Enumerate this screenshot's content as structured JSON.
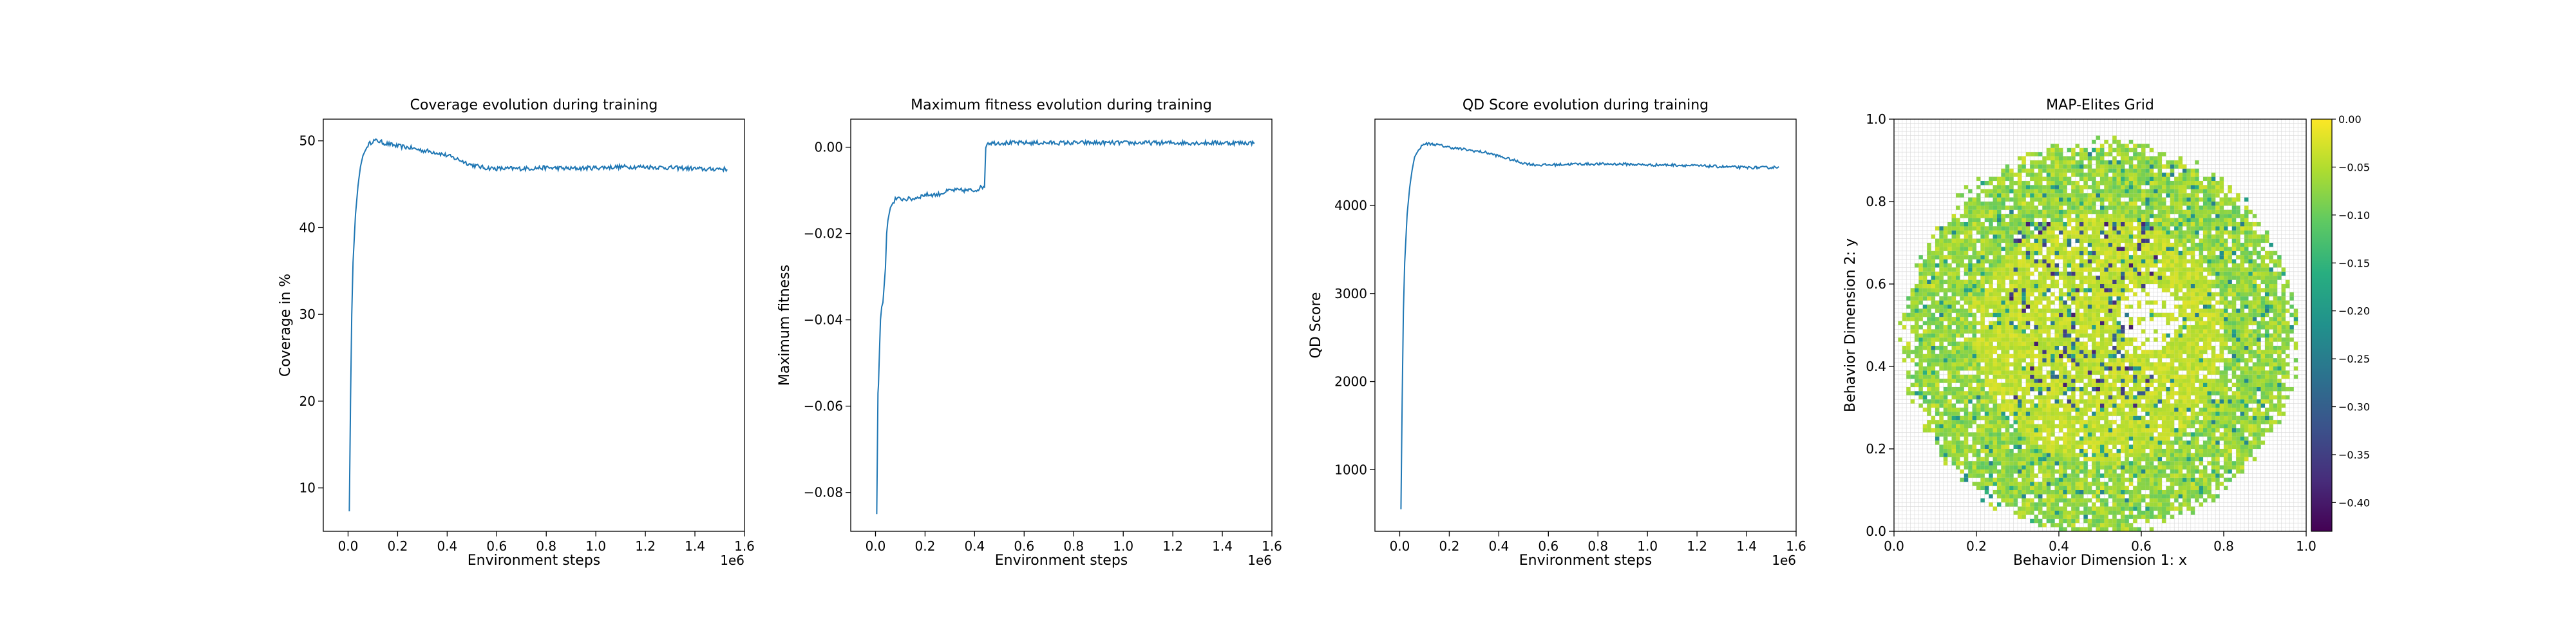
{
  "figure": {
    "scale_label": "1e6",
    "colors": {
      "line": "#1f77b4",
      "axes": "#000000",
      "grid": "#d9d9d9"
    }
  },
  "chart_data": [
    {
      "type": "line",
      "title": "Coverage evolution during training",
      "xlabel": "Environment steps",
      "ylabel": "Coverage in %",
      "x_offset_label": "1e6",
      "xlim": [
        -0.1,
        1.6
      ],
      "ylim": [
        5,
        52.5
      ],
      "xticks": [
        0.0,
        0.2,
        0.4,
        0.6,
        0.8,
        1.0,
        1.2,
        1.4,
        1.6
      ],
      "xtick_labels": [
        "0.0",
        "0.2",
        "0.4",
        "0.6",
        "0.8",
        "1.0",
        "1.2",
        "1.4",
        "1.6"
      ],
      "yticks": [
        10,
        20,
        30,
        40,
        50
      ],
      "ytick_labels": [
        "10",
        "20",
        "30",
        "40",
        "50"
      ],
      "series": [
        {
          "color": "#1f77b4",
          "noise": 0.25,
          "x": [
            0.005,
            0.01,
            0.015,
            0.02,
            0.03,
            0.04,
            0.05,
            0.06,
            0.08,
            0.1,
            0.12,
            0.15,
            0.2,
            0.25,
            0.3,
            0.35,
            0.4,
            0.45,
            0.5,
            0.55,
            0.6,
            0.7,
            0.8,
            0.9,
            1.0,
            1.1,
            1.2,
            1.3,
            1.4,
            1.45,
            1.5,
            1.53
          ],
          "y": [
            7.3,
            20.0,
            30.0,
            36.0,
            41.5,
            44.8,
            47.0,
            48.3,
            49.5,
            50.0,
            50.0,
            49.7,
            49.4,
            49.2,
            48.9,
            48.7,
            48.3,
            47.8,
            47.2,
            46.9,
            46.8,
            46.8,
            46.9,
            46.8,
            46.9,
            47.0,
            47.0,
            46.9,
            46.8,
            46.7,
            46.8,
            46.7
          ]
        }
      ]
    },
    {
      "type": "line",
      "title": "Maximum fitness evolution during training",
      "xlabel": "Environment steps",
      "ylabel": "Maximum fitness",
      "x_offset_label": "1e6",
      "xlim": [
        -0.1,
        1.6
      ],
      "ylim": [
        -0.089,
        0.0065
      ],
      "xticks": [
        0.0,
        0.2,
        0.4,
        0.6,
        0.8,
        1.0,
        1.2,
        1.4,
        1.6
      ],
      "xtick_labels": [
        "0.0",
        "0.2",
        "0.4",
        "0.6",
        "0.8",
        "1.0",
        "1.2",
        "1.4",
        "1.6"
      ],
      "yticks": [
        -0.08,
        -0.06,
        -0.04,
        -0.02,
        0.0
      ],
      "ytick_labels": [
        "−0.08",
        "−0.06",
        "−0.04",
        "−0.02",
        "0.00"
      ],
      "series": [
        {
          "color": "#1f77b4",
          "noise": 0.0005,
          "x": [
            0.005,
            0.01,
            0.012,
            0.02,
            0.025,
            0.03,
            0.04,
            0.045,
            0.05,
            0.06,
            0.07,
            0.08,
            0.1,
            0.15,
            0.2,
            0.25,
            0.3,
            0.35,
            0.4,
            0.44,
            0.445,
            0.45,
            0.5,
            0.6,
            0.7,
            0.8,
            0.9,
            1.0,
            1.1,
            1.2,
            1.3,
            1.4,
            1.5,
            1.53
          ],
          "y": [
            -0.085,
            -0.057,
            -0.055,
            -0.04,
            -0.037,
            -0.036,
            -0.028,
            -0.02,
            -0.017,
            -0.014,
            -0.013,
            -0.012,
            -0.012,
            -0.012,
            -0.011,
            -0.011,
            -0.01,
            -0.01,
            -0.01,
            -0.009,
            0.0,
            0.001,
            0.001,
            0.001,
            0.001,
            0.001,
            0.001,
            0.001,
            0.001,
            0.001,
            0.001,
            0.001,
            0.001,
            0.001
          ]
        }
      ]
    },
    {
      "type": "line",
      "title": "QD Score evolution during training",
      "xlabel": "Environment steps",
      "ylabel": "QD Score",
      "x_offset_label": "1e6",
      "xlim": [
        -0.1,
        1.6
      ],
      "ylim": [
        300,
        4980
      ],
      "xticks": [
        0.0,
        0.2,
        0.4,
        0.6,
        0.8,
        1.0,
        1.2,
        1.4,
        1.6
      ],
      "xtick_labels": [
        "0.0",
        "0.2",
        "0.4",
        "0.6",
        "0.8",
        "1.0",
        "1.2",
        "1.4",
        "1.6"
      ],
      "yticks": [
        1000,
        2000,
        3000,
        4000
      ],
      "ytick_labels": [
        "1000",
        "2000",
        "3000",
        "4000"
      ],
      "series": [
        {
          "color": "#1f77b4",
          "noise": 15,
          "x": [
            0.005,
            0.01,
            0.015,
            0.02,
            0.03,
            0.04,
            0.05,
            0.06,
            0.08,
            0.1,
            0.12,
            0.15,
            0.2,
            0.25,
            0.3,
            0.35,
            0.4,
            0.45,
            0.5,
            0.55,
            0.6,
            0.7,
            0.8,
            0.9,
            1.0,
            1.1,
            1.2,
            1.3,
            1.4,
            1.45,
            1.5,
            1.53
          ],
          "y": [
            550,
            1800,
            2800,
            3350,
            3900,
            4200,
            4400,
            4550,
            4650,
            4700,
            4700,
            4690,
            4660,
            4640,
            4620,
            4600,
            4560,
            4520,
            4480,
            4460,
            4460,
            4470,
            4470,
            4470,
            4460,
            4460,
            4450,
            4440,
            4430,
            4430,
            4430,
            4440
          ]
        }
      ]
    },
    {
      "type": "heatmap",
      "title": "MAP-Elites Grid",
      "xlabel": "Behavior Dimension 1: x",
      "ylabel": "Behavior Dimension 2: y",
      "xlim": [
        0.0,
        1.0
      ],
      "ylim": [
        0.0,
        1.0
      ],
      "xticks": [
        0.0,
        0.2,
        0.4,
        0.6,
        0.8,
        1.0
      ],
      "xtick_labels": [
        "0.0",
        "0.2",
        "0.4",
        "0.6",
        "0.8",
        "1.0"
      ],
      "yticks": [
        0.0,
        0.2,
        0.4,
        0.6,
        0.8,
        1.0
      ],
      "ytick_labels": [
        "0.0",
        "0.2",
        "0.4",
        "0.6",
        "0.8",
        "1.0"
      ],
      "grid": true,
      "grid_cells": 100,
      "filled_region": {
        "center": [
          0.5,
          0.47
        ],
        "radius": 0.47,
        "fill_fraction": 0.88
      },
      "value_range": [
        -0.43,
        0.0
      ],
      "colormap": "viridis",
      "colorbar": {
        "ticks": [
          0.0,
          -0.05,
          -0.1,
          -0.15,
          -0.2,
          -0.25,
          -0.3,
          -0.35,
          -0.4
        ],
        "tick_labels": [
          "0.00",
          "−0.05",
          "−0.10",
          "−0.15",
          "−0.20",
          "−0.25",
          "−0.30",
          "−0.35",
          "−0.40"
        ]
      }
    }
  ]
}
